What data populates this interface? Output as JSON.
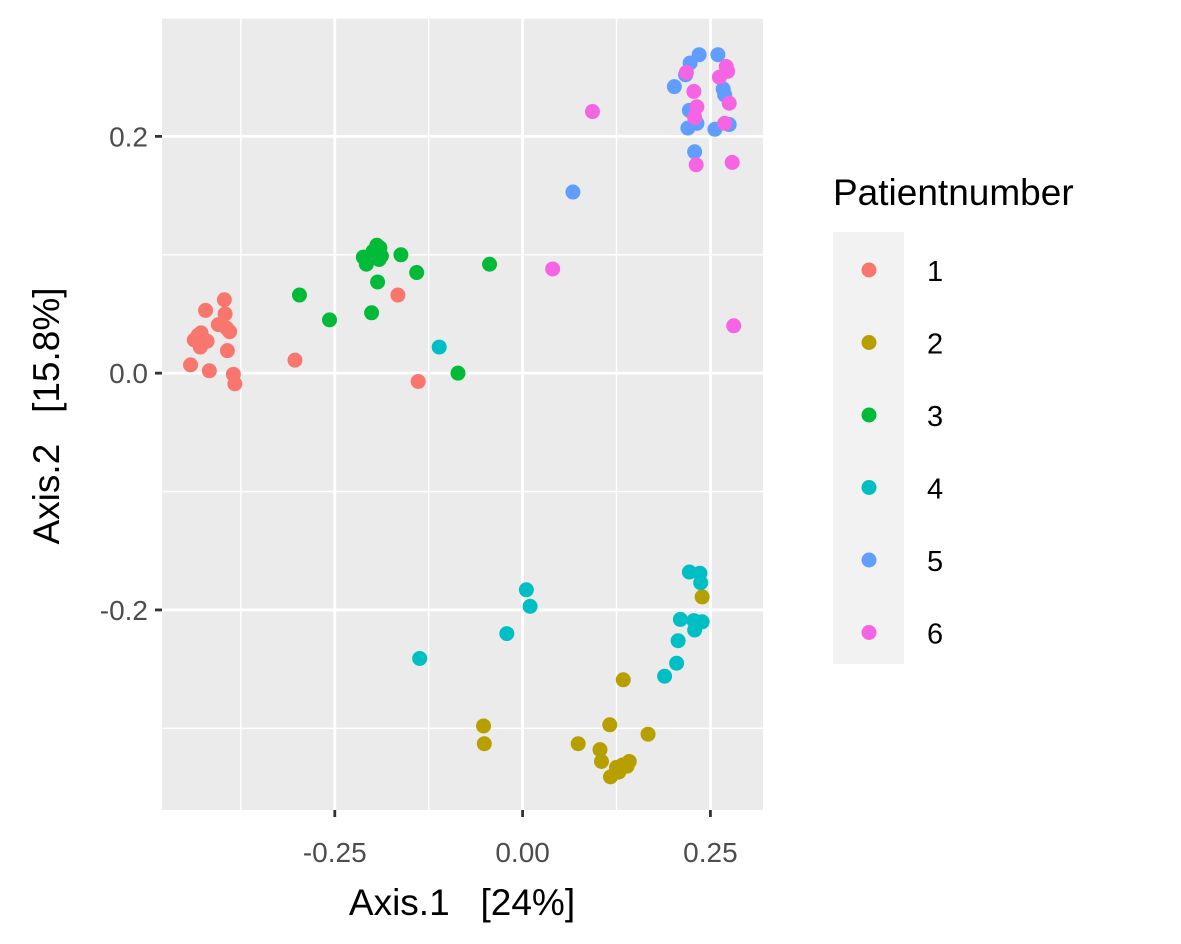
{
  "chart_data": {
    "type": "scatter",
    "xlabel": "Axis.1   [24%]",
    "ylabel": "Axis.2   [15.8%]",
    "xlim": [
      -0.48,
      0.32
    ],
    "ylim": [
      -0.369,
      0.3
    ],
    "x_ticks": [
      {
        "value": -0.25,
        "label": "-0.25"
      },
      {
        "value": 0.0,
        "label": "0.00"
      },
      {
        "value": 0.25,
        "label": "0.25"
      }
    ],
    "y_ticks": [
      {
        "value": 0.2,
        "label": "0.2"
      },
      {
        "value": 0.0,
        "label": "0.0"
      },
      {
        "value": -0.2,
        "label": "-0.2"
      }
    ],
    "grid": true,
    "legend": {
      "title": "Patientnumber",
      "placement": "right",
      "entries": [
        "1",
        "2",
        "3",
        "4",
        "5",
        "6"
      ]
    },
    "series": [
      {
        "name": "1",
        "color": "#F8766D",
        "points": [
          [
            -0.442,
            0.007
          ],
          [
            -0.437,
            0.028
          ],
          [
            -0.432,
            0.032
          ],
          [
            -0.429,
            0.022
          ],
          [
            -0.428,
            0.034
          ],
          [
            -0.422,
            0.053
          ],
          [
            -0.42,
            0.027
          ],
          [
            -0.417,
            0.002
          ],
          [
            -0.405,
            0.041
          ],
          [
            -0.397,
            0.062
          ],
          [
            -0.396,
            0.05
          ],
          [
            -0.394,
            0.038
          ],
          [
            -0.393,
            0.019
          ],
          [
            -0.39,
            0.035
          ],
          [
            -0.385,
            -0.001
          ],
          [
            -0.383,
            -0.009
          ],
          [
            -0.303,
            0.011
          ],
          [
            -0.166,
            0.066
          ],
          [
            -0.139,
            -0.007
          ]
        ]
      },
      {
        "name": "2",
        "color": "#B79F00",
        "points": [
          [
            -0.052,
            -0.298
          ],
          [
            -0.051,
            -0.313
          ],
          [
            0.074,
            -0.313
          ],
          [
            0.103,
            -0.318
          ],
          [
            0.105,
            -0.328
          ],
          [
            0.116,
            -0.297
          ],
          [
            0.117,
            -0.341
          ],
          [
            0.125,
            -0.333
          ],
          [
            0.128,
            -0.337
          ],
          [
            0.133,
            -0.331
          ],
          [
            0.134,
            -0.259
          ],
          [
            0.139,
            -0.332
          ],
          [
            0.142,
            -0.328
          ],
          [
            0.167,
            -0.305
          ],
          [
            0.239,
            -0.189
          ]
        ]
      },
      {
        "name": "3",
        "color": "#00BA38",
        "points": [
          [
            -0.297,
            0.066
          ],
          [
            -0.257,
            0.045
          ],
          [
            -0.212,
            0.098
          ],
          [
            -0.208,
            0.092
          ],
          [
            -0.201,
            0.051
          ],
          [
            -0.199,
            0.103
          ],
          [
            -0.194,
            0.108
          ],
          [
            -0.193,
            0.077
          ],
          [
            -0.191,
            0.096
          ],
          [
            -0.19,
            0.106
          ],
          [
            -0.188,
            0.099
          ],
          [
            -0.162,
            0.1
          ],
          [
            -0.141,
            0.085
          ],
          [
            -0.086,
            0.0
          ],
          [
            -0.044,
            0.092
          ]
        ]
      },
      {
        "name": "4",
        "color": "#00BFC4",
        "points": [
          [
            -0.137,
            -0.241
          ],
          [
            -0.111,
            0.022
          ],
          [
            -0.021,
            -0.22
          ],
          [
            0.005,
            -0.183
          ],
          [
            0.01,
            -0.197
          ],
          [
            0.189,
            -0.256
          ],
          [
            0.205,
            -0.245
          ],
          [
            0.207,
            -0.226
          ],
          [
            0.21,
            -0.208
          ],
          [
            0.222,
            -0.168
          ],
          [
            0.228,
            -0.209
          ],
          [
            0.229,
            -0.217
          ],
          [
            0.232,
            -0.212
          ],
          [
            0.236,
            -0.169
          ],
          [
            0.237,
            -0.177
          ],
          [
            0.239,
            -0.21
          ]
        ]
      },
      {
        "name": "5",
        "color": "#619CFF",
        "points": [
          [
            0.067,
            0.153
          ],
          [
            0.202,
            0.242
          ],
          [
            0.217,
            0.252
          ],
          [
            0.22,
            0.207
          ],
          [
            0.222,
            0.222
          ],
          [
            0.223,
            0.262
          ],
          [
            0.229,
            0.187
          ],
          [
            0.232,
            0.211
          ],
          [
            0.235,
            0.269
          ],
          [
            0.256,
            0.206
          ],
          [
            0.26,
            0.269
          ],
          [
            0.267,
            0.24
          ],
          [
            0.269,
            0.235
          ],
          [
            0.275,
            0.21
          ]
        ]
      },
      {
        "name": "6",
        "color": "#F564E3",
        "points": [
          [
            0.04,
            0.088
          ],
          [
            0.093,
            0.221
          ],
          [
            0.218,
            0.254
          ],
          [
            0.228,
            0.238
          ],
          [
            0.229,
            0.216
          ],
          [
            0.231,
            0.176
          ],
          [
            0.232,
            0.225
          ],
          [
            0.262,
            0.25
          ],
          [
            0.269,
            0.211
          ],
          [
            0.271,
            0.259
          ],
          [
            0.273,
            0.255
          ],
          [
            0.275,
            0.228
          ],
          [
            0.279,
            0.178
          ],
          [
            0.281,
            0.04
          ]
        ]
      }
    ]
  }
}
